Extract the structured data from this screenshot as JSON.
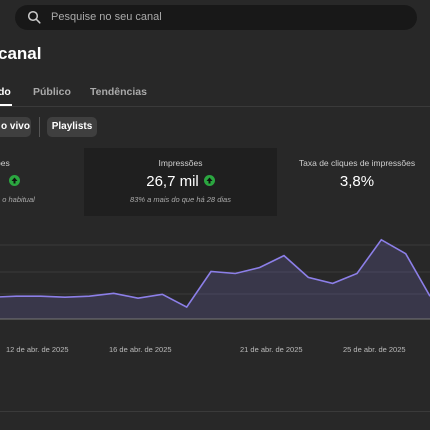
{
  "search": {
    "placeholder": "Pesquise no seu canal",
    "icon": "search-icon"
  },
  "page_title": "canal",
  "tabs": [
    {
      "label": "do",
      "active": true
    },
    {
      "label": "Público",
      "active": false
    },
    {
      "label": "Tendências",
      "active": false
    }
  ],
  "chips": [
    {
      "label": "o vivo"
    },
    {
      "label": "Playlists"
    }
  ],
  "metrics": [
    {
      "label": "ões",
      "value": "",
      "trend": "up",
      "note": "e o habitual"
    },
    {
      "label": "Impressões",
      "value": "26,7 mil",
      "trend": "up",
      "note": "83% a mais do que há 28 dias"
    },
    {
      "label": "Taxa de cliques de impressões",
      "value": "3,8%",
      "trend": "",
      "note": ""
    }
  ],
  "colors": {
    "accent_line": "#8c7fe8",
    "up_badge": "#2ba640",
    "background": "#282828"
  },
  "chart_data": {
    "type": "area",
    "x_tick_labels": [
      "12 de abr. de 2025",
      "16 de abr. de 2025",
      "21 de abr. de 2025",
      "25 de abr. de 2025"
    ],
    "series": [
      {
        "values": [
          22,
          23,
          23,
          22,
          23,
          26,
          21,
          25,
          12,
          48,
          46,
          52,
          64,
          42,
          36,
          46,
          80,
          66,
          23
        ]
      }
    ],
    "ylim": [
      0,
      100
    ],
    "grid": true
  }
}
